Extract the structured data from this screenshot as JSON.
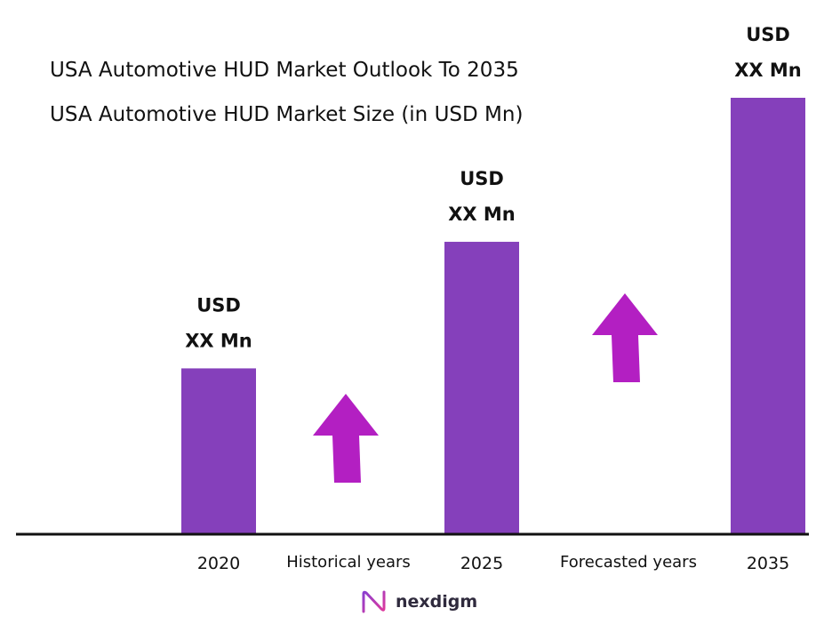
{
  "title": "USA Automotive HUD Market Outlook To 2035",
  "subtitle": "USA Automotive HUD Market Size (in USD Mn)",
  "colors": {
    "bar": "#8540bb",
    "arrow": "#b31fc2",
    "axis": "#111111"
  },
  "chart_data": {
    "type": "bar",
    "categories": [
      "2020",
      "2025",
      "2035"
    ],
    "values": [
      38,
      67,
      100
    ],
    "ylim": [
      0,
      100
    ],
    "data_labels": [
      [
        "USD",
        "XX Mn"
      ],
      [
        "USD",
        "XX Mn"
      ],
      [
        "USD",
        "XX Mn"
      ]
    ],
    "period_labels": [
      "Historical years",
      "Forecasted years"
    ],
    "grid": false
  },
  "logo": {
    "text": "nexdigm",
    "icon": "nexdigm-logo-icon"
  }
}
